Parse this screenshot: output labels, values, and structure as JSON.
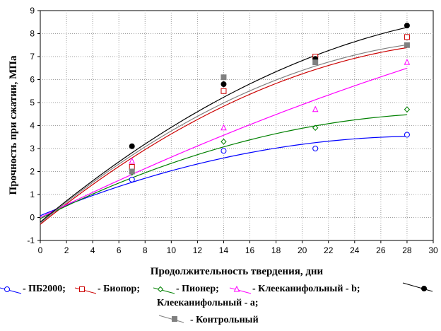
{
  "chart_data": {
    "type": "scatter",
    "xlabel": "Продолжительность твердения, дни",
    "ylabel": "Прочность при сжатии, МПа",
    "xlim": [
      0,
      30
    ],
    "ylim": [
      -1,
      9
    ],
    "x_ticks": [
      "0",
      "2",
      "4",
      "6",
      "8",
      "10",
      "12",
      "14",
      "16",
      "18",
      "20",
      "22",
      "24",
      "26",
      "28",
      "30"
    ],
    "y_ticks": [
      "-1",
      "0",
      "1",
      "2",
      "3",
      "4",
      "5",
      "6",
      "7",
      "8",
      "9"
    ],
    "grid": true,
    "legend_position": "bottom",
    "series": [
      {
        "name": "ПБ2000;",
        "color": "#0000ff",
        "marker": "circle-open",
        "x": [
          7,
          14,
          21,
          28
        ],
        "y": [
          1.65,
          2.9,
          3.0,
          3.6
        ],
        "fit": [
          0.08,
          0.2352,
          -0.004
        ]
      },
      {
        "name": "Биопор;",
        "color": "#cc0000",
        "marker": "square-open",
        "x": [
          7,
          14,
          21,
          28
        ],
        "y": [
          2.2,
          5.5,
          7.0,
          7.85
        ],
        "fit": [
          -0.3,
          0.4594,
          -0.0066
        ]
      },
      {
        "name": "Пионер;",
        "color": "#008000",
        "marker": "diamond-open",
        "x": [
          7,
          14,
          21,
          28
        ],
        "y": [
          1.95,
          3.3,
          3.9,
          4.7
        ],
        "fit": [
          -0.05,
          0.2846,
          -0.0044
        ]
      },
      {
        "name": "Клееканифольный - b;",
        "color": "#ff00ff",
        "marker": "triangle-open",
        "x": [
          7,
          14,
          21,
          28
        ],
        "y": [
          2.45,
          3.9,
          4.7,
          6.75
        ],
        "fit": [
          0.0,
          0.2795,
          -0.0017
        ]
      },
      {
        "name": "Клееканифольный - a;",
        "color": "#000000",
        "marker": "circle-filled",
        "x": [
          7,
          14,
          21,
          28
        ],
        "y": [
          3.1,
          5.8,
          6.9,
          8.35
        ],
        "fit": [
          -0.2,
          0.4733,
          -0.0061
        ]
      },
      {
        "name": "Контрольный",
        "color": "#808080",
        "marker": "square-filled",
        "x": [
          7,
          14,
          21,
          28
        ],
        "y": [
          2.0,
          6.1,
          6.75,
          7.5
        ],
        "fit": [
          -0.25,
          0.4704,
          -0.0069
        ]
      }
    ]
  }
}
